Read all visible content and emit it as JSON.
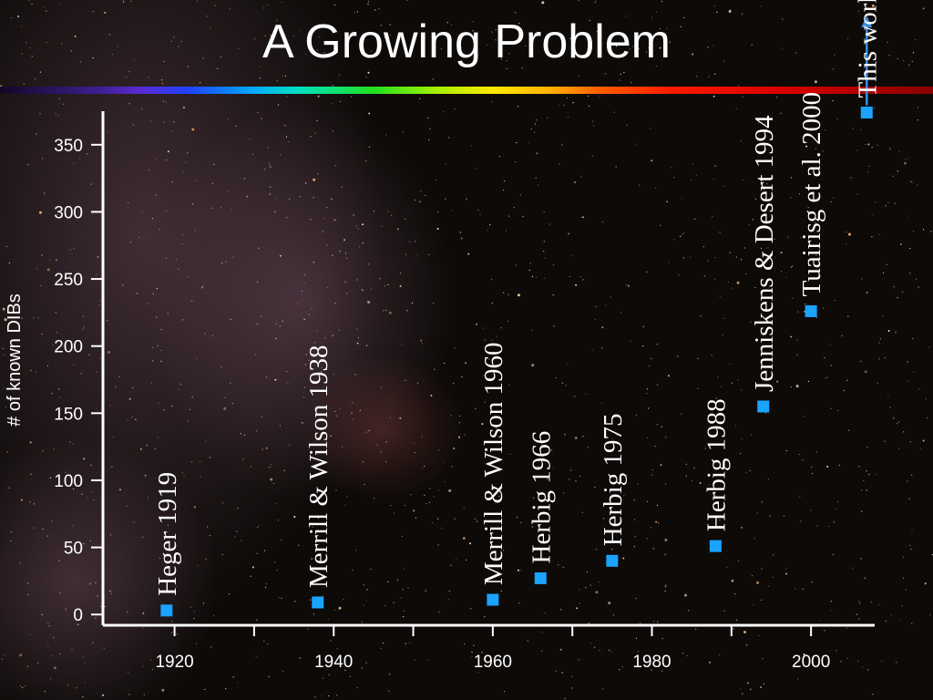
{
  "title": "A Growing Problem",
  "chart_data": {
    "type": "scatter",
    "title": "A Growing Problem",
    "ylabel": "# of known DIBs",
    "xlabel": "",
    "xlim": [
      1911,
      2008
    ],
    "ylim": [
      -8,
      375
    ],
    "xticks": [
      1920,
      1940,
      1960,
      1980,
      2000
    ],
    "yticks": [
      0,
      50,
      100,
      150,
      200,
      250,
      300,
      350
    ],
    "marker_color": "#1aa3ff",
    "label_color": "#ffffff",
    "arrow_color": "#3b8fe6",
    "points": [
      {
        "x": 1919,
        "y": 3,
        "label": "Heger 1919"
      },
      {
        "x": 1938,
        "y": 9,
        "label": "Merrill & Wilson 1938"
      },
      {
        "x": 1960,
        "y": 11,
        "label": "Merrill & Wilson 1960"
      },
      {
        "x": 1966,
        "y": 27,
        "label": "Herbig 1966"
      },
      {
        "x": 1975,
        "y": 40,
        "label": "Herbig 1975"
      },
      {
        "x": 1988,
        "y": 51,
        "label": "Herbig 1988"
      },
      {
        "x": 1994,
        "y": 155,
        "label": "Jenniskens & Desert 1994"
      },
      {
        "x": 2000,
        "y": 226,
        "label": "Tuairisg et al. 2000"
      },
      {
        "x": 2007,
        "y": 374,
        "label": "This work"
      }
    ]
  }
}
